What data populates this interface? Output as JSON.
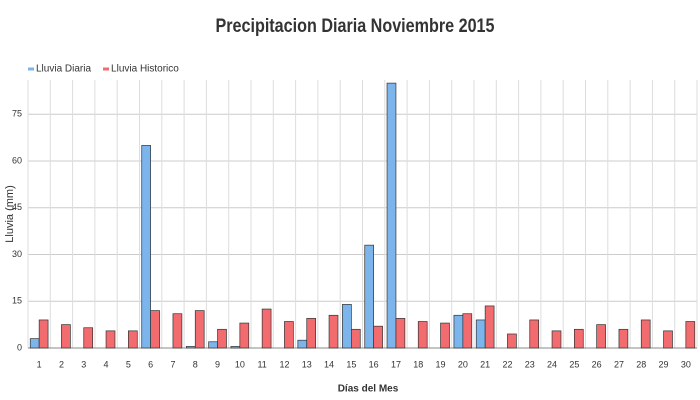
{
  "chart_data": {
    "type": "bar",
    "title": "Precipitacion Diaria Noviembre 2015",
    "x_label": "Días del Mes",
    "y_label": "Lluvia (mm)",
    "categories": [
      "1",
      "2",
      "3",
      "4",
      "5",
      "6",
      "7",
      "8",
      "9",
      "10",
      "11",
      "12",
      "13",
      "14",
      "15",
      "16",
      "17",
      "18",
      "19",
      "20",
      "21",
      "22",
      "23",
      "24",
      "25",
      "26",
      "27",
      "28",
      "29",
      "30"
    ],
    "series": [
      {
        "name": "Lluvia Diaria",
        "color": "#7cb5ec",
        "values": [
          3,
          0,
          0,
          0,
          0,
          65,
          0,
          0.5,
          2,
          0.5,
          0,
          0,
          2.5,
          0,
          14,
          33,
          85,
          0,
          0,
          10.5,
          9,
          0,
          0,
          0,
          0,
          0,
          0,
          0,
          0,
          0
        ]
      },
      {
        "name": "Lluvia Historico",
        "color": "#f26b6f",
        "values": [
          9,
          7.5,
          6.5,
          5.5,
          5.5,
          12,
          11,
          12,
          6,
          8,
          12.5,
          8.5,
          9.5,
          10.5,
          6,
          7,
          9.5,
          8.5,
          8,
          11,
          13.5,
          4.5,
          9,
          5.5,
          6,
          7.5,
          6,
          9,
          5.5,
          8.5
        ]
      }
    ],
    "ylim": [
      0,
      86
    ],
    "yticks": [
      0,
      15,
      30,
      45,
      60,
      75
    ],
    "grid": true,
    "legend": "top-left"
  }
}
